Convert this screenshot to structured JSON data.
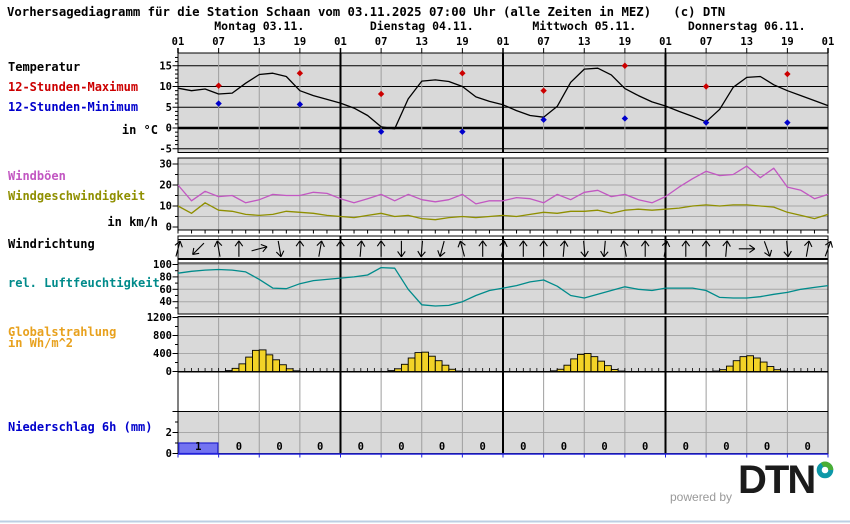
{
  "title": "Vorhersagediagramm für die Station Schaan vom 03.11.2025 07:00 Uhr (alle Zeiten in MEZ)   (c) DTN",
  "days": [
    "Montag 03.11.",
    "Dienstag 04.11.",
    "Mittwoch 05.11.",
    "Donnerstag 06.11."
  ],
  "time_labels": [
    "01",
    "07",
    "13",
    "19",
    "01",
    "07",
    "13",
    "19",
    "01",
    "07",
    "13",
    "19",
    "01",
    "07",
    "13",
    "19",
    "01"
  ],
  "labels": {
    "temperature": "Temperatur",
    "max12": "12-Stunden-Maximum",
    "min12": "12-Stunden-Minimum",
    "temp_unit": "in °C",
    "gusts": "Windböen",
    "wind_speed": "Windgeschwindigkeit",
    "wind_unit": "in km/h",
    "wind_dir": "Windrichtung",
    "humidity": "rel. Luftfeuchtigkeit",
    "radiation_line1": "Globalstrahlung",
    "radiation_line2": "in Wh/m^2",
    "precip": "Niederschlag 6h (mm)"
  },
  "footer": {
    "powered_by": "powered by",
    "brand": "DTN"
  },
  "colors": {
    "temperature": "#000000",
    "max": "#cc0000",
    "min": "#0000cc",
    "gusts": "#c257c2",
    "wind_speed": "#8f8f00",
    "humidity": "#008b8b",
    "radiation_label": "#e8a11d",
    "radiation_bar": "#f2d327",
    "precip_label": "#0000cc",
    "precip_bar": "#7373f1",
    "precip_axis": "#2222dd",
    "panel_bg": "#d9d9d9",
    "grid": "#9e9e9e",
    "grid_minor": "#a8a8a8",
    "day_line": "#000000",
    "footer_rule": "#bccfe3",
    "powered_by": "#999999",
    "brand": "#1b1b1b",
    "brand_teal": "#0d98a8",
    "brand_green": "#4aae35"
  },
  "chart_data": [
    {
      "id": "temperature",
      "type": "line",
      "title": "Temperatur",
      "ylabel": "in °C",
      "ylim": [
        -6,
        18
      ],
      "yticks": [
        15,
        10,
        5,
        0,
        -5
      ],
      "x_start_label": "Mo 01:00 MEZ",
      "x_total_hours": 96,
      "x_step_hours": 2,
      "series": [
        {
          "name": "Temperatur",
          "color": "#000000",
          "values": [
            9.6,
            9.0,
            9.4,
            8.2,
            8.4,
            10.8,
            12.9,
            13.2,
            12.4,
            9.0,
            7.8,
            6.9,
            6.0,
            4.8,
            3.0,
            0.3,
            -0.2,
            7.0,
            11.3,
            11.6,
            11.2,
            10.0,
            7.5,
            6.4,
            5.6,
            4.2,
            3.0,
            2.6,
            5.2,
            11.0,
            14.2,
            14.4,
            12.8,
            9.5,
            7.8,
            6.3,
            5.3,
            4.0,
            2.8,
            1.5,
            4.5,
            9.8,
            12.2,
            12.4,
            10.4,
            9.0,
            7.8,
            6.6,
            5.4
          ]
        }
      ],
      "markers": [
        {
          "name": "12-Stunden-Maximum",
          "color": "#cc0000",
          "hours": [
            6,
            18,
            30,
            42,
            54,
            66,
            78,
            90
          ],
          "values": [
            10.2,
            13.2,
            8.2,
            13.2,
            9.0,
            15.0,
            10.0,
            13.0
          ]
        },
        {
          "name": "12-Stunden-Minimum",
          "color": "#0000cc",
          "hours": [
            6,
            18,
            30,
            42,
            54,
            66,
            78,
            90
          ],
          "values": [
            5.9,
            5.7,
            -0.9,
            -0.9,
            2.0,
            2.3,
            1.3,
            1.3
          ]
        }
      ]
    },
    {
      "id": "wind",
      "type": "line",
      "title": "Wind",
      "ylabel": "in km/h",
      "ylim": [
        0,
        33
      ],
      "yticks": [
        30,
        20,
        10,
        0
      ],
      "x_step_hours": 2,
      "series": [
        {
          "name": "Windböen",
          "color": "#c257c2",
          "values": [
            20,
            12.5,
            17,
            14.5,
            15,
            11.5,
            13,
            15.5,
            15,
            15,
            16.5,
            16,
            13.5,
            11.5,
            13.5,
            15.5,
            12.5,
            15.5,
            13,
            12,
            13,
            15.5,
            11,
            12.5,
            12.5,
            14,
            13.5,
            11.5,
            15.5,
            13,
            16.5,
            17.5,
            14.5,
            15.5,
            13,
            11.5,
            14.5,
            19,
            23,
            26.5,
            24.5,
            25,
            29,
            23.5,
            28,
            19,
            17.5,
            13.5,
            15.5
          ]
        },
        {
          "name": "Windgeschwindigkeit",
          "color": "#8f8f00",
          "values": [
            10,
            6.5,
            11.5,
            8,
            7.5,
            6,
            5.5,
            6,
            7.5,
            7,
            6.5,
            5.5,
            5,
            4.5,
            5.5,
            6.5,
            5,
            5.5,
            4,
            3.5,
            4.5,
            5,
            4.5,
            5,
            5.5,
            5,
            6,
            7,
            6.5,
            7.5,
            7.5,
            8,
            6.5,
            8,
            8.5,
            8,
            8.5,
            9,
            10,
            10.5,
            10,
            10.5,
            10.5,
            10,
            9.5,
            7,
            5.5,
            4,
            6
          ]
        }
      ]
    },
    {
      "id": "wind_direction",
      "type": "arrows",
      "title": "Windrichtung",
      "x_step_hours": 3,
      "angles_deg_from_north": [
        15,
        225,
        350,
        0,
        75,
        170,
        0,
        10,
        0,
        5,
        0,
        180,
        185,
        195,
        345,
        0,
        10,
        0,
        0,
        5,
        175,
        185,
        350,
        0,
        10,
        0,
        0,
        5,
        90,
        160,
        175,
        10,
        20
      ]
    },
    {
      "id": "humidity",
      "type": "line",
      "title": "rel. Luftfeuchtigkeit",
      "ylim": [
        20,
        103
      ],
      "yticks": [
        100,
        80,
        60,
        40
      ],
      "x_step_hours": 2,
      "series": [
        {
          "name": "rel. Luftfeuchtigkeit",
          "color": "#008b8b",
          "values": [
            86,
            89,
            91,
            92,
            91,
            88,
            76,
            62,
            61,
            69,
            74,
            76,
            78,
            80,
            83,
            95,
            94,
            60,
            35,
            33,
            34,
            40,
            50,
            58,
            62,
            66,
            72,
            75,
            65,
            50,
            46,
            52,
            58,
            64,
            60,
            58,
            62,
            62,
            62,
            58,
            47,
            46,
            46,
            48,
            52,
            55,
            60,
            63,
            66
          ]
        }
      ]
    },
    {
      "id": "radiation",
      "type": "bar",
      "title": "Globalstrahlung in Wh/m^2",
      "ylim": [
        0,
        1300
      ],
      "yticks": [
        1200,
        800,
        400,
        0
      ],
      "bar_width_hours": 1,
      "first_bar_local_hour": 8,
      "daily_values": [
        [
          20,
          70,
          170,
          320,
          470,
          480,
          370,
          260,
          150,
          60,
          15
        ],
        [
          20,
          60,
          160,
          300,
          420,
          430,
          340,
          240,
          140,
          50,
          10
        ],
        [
          15,
          50,
          140,
          280,
          380,
          400,
          330,
          230,
          130,
          45,
          10
        ],
        [
          10,
          40,
          120,
          240,
          330,
          350,
          300,
          210,
          110,
          40,
          8
        ]
      ]
    },
    {
      "id": "precipitation",
      "type": "bar",
      "title": "Niederschlag 6h (mm)",
      "ylim": [
        0,
        8
      ],
      "yticks": [
        2,
        0
      ],
      "bar_width_hours": 6,
      "values": [
        1,
        0,
        0,
        0,
        0,
        0,
        0,
        0,
        0,
        0,
        0,
        0,
        0,
        0,
        0,
        0
      ]
    }
  ]
}
